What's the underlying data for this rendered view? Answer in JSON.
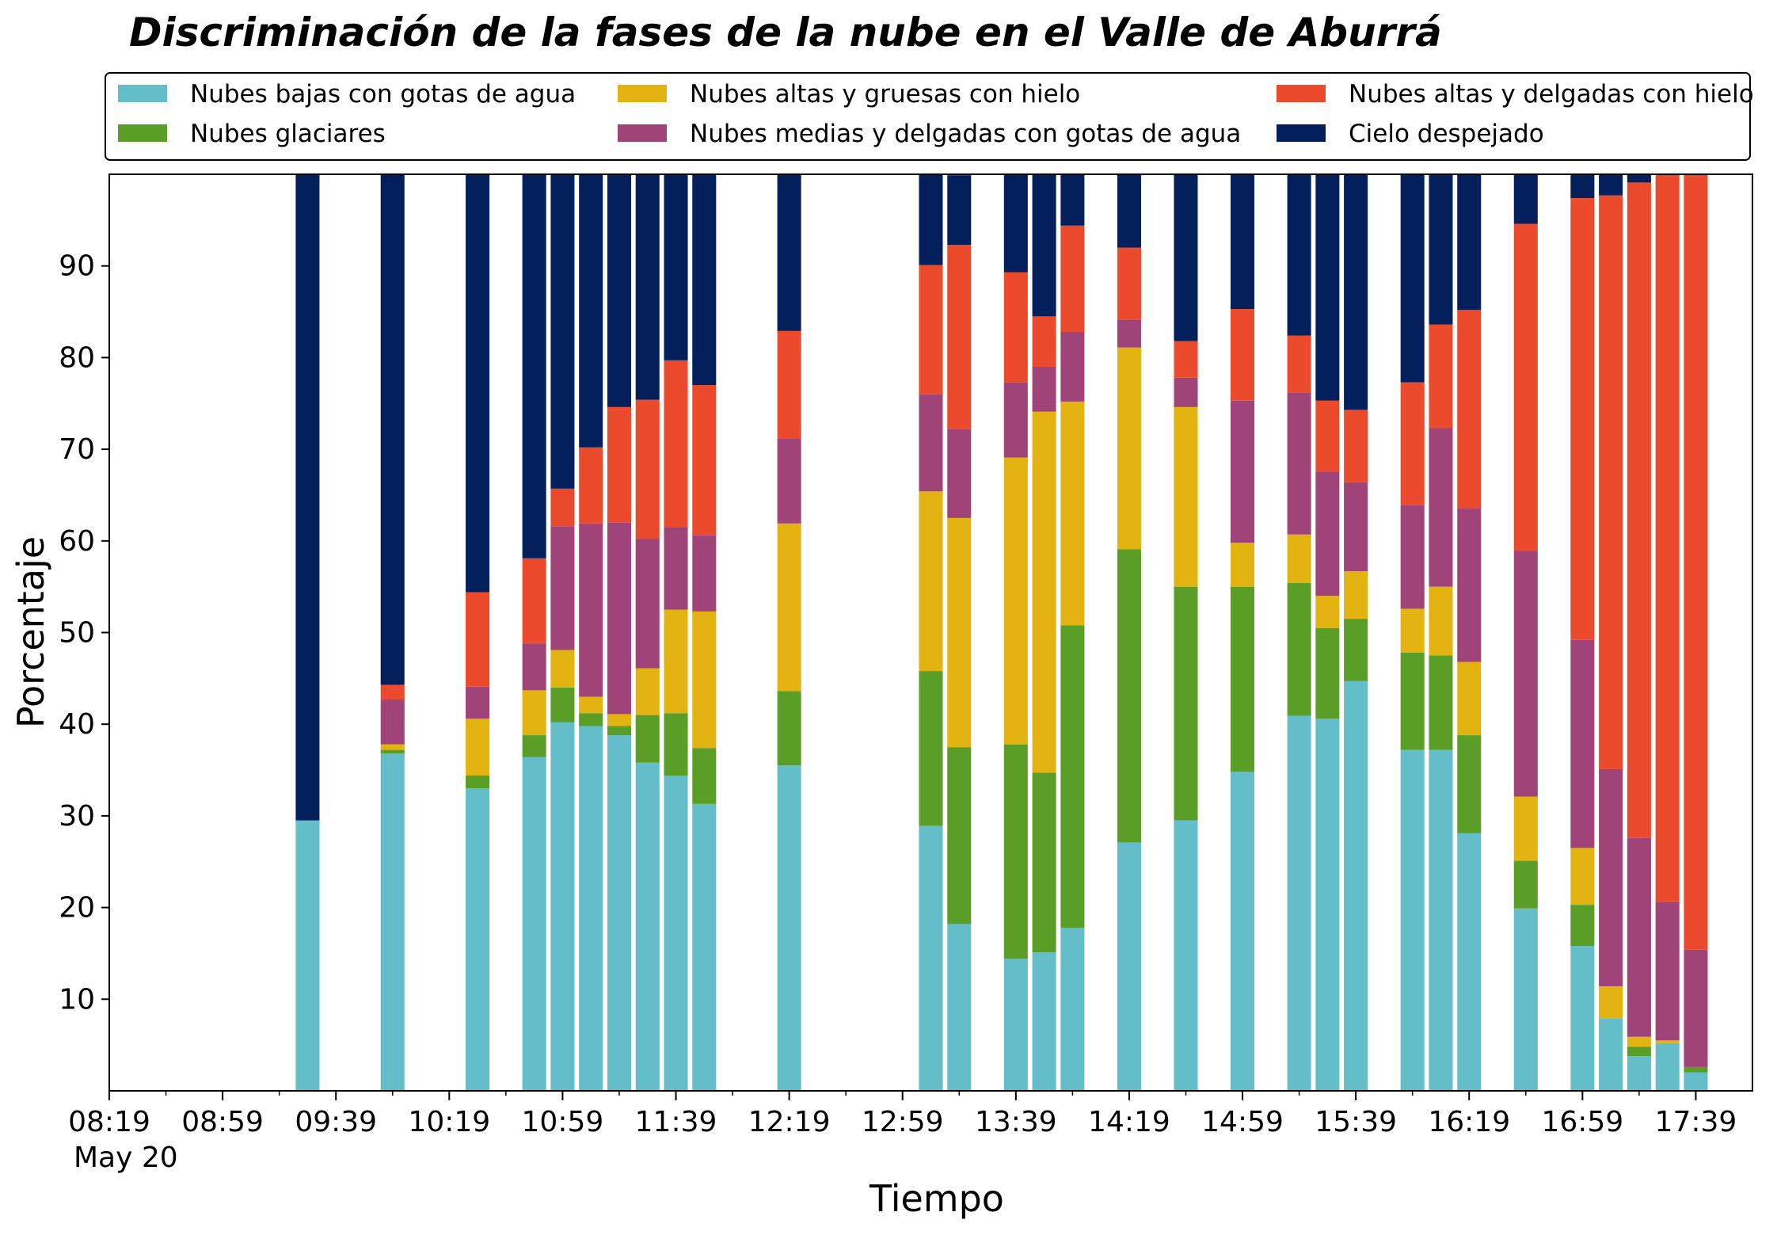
{
  "chart_data": {
    "type": "bar",
    "stacked": true,
    "title": "Discriminación de la fases de la nube en el Valle de Aburrá",
    "xlabel": "Tiempo",
    "ylabel": "Porcentaje",
    "ylim": [
      0,
      100
    ],
    "yticks": [
      10,
      20,
      30,
      40,
      50,
      60,
      70,
      80,
      90
    ],
    "x_range": [
      "08:19",
      "17:59"
    ],
    "xticks": [
      "08:19",
      "08:59",
      "09:39",
      "10:19",
      "10:59",
      "11:39",
      "12:19",
      "12:59",
      "13:39",
      "14:19",
      "14:59",
      "15:39",
      "16:19",
      "16:59",
      "17:39"
    ],
    "date_label": "May 20",
    "grid": false,
    "legend": {
      "position": "top",
      "columns": 3
    },
    "x": [
      "09:29",
      "09:59",
      "10:29",
      "10:49",
      "10:59",
      "11:09",
      "11:19",
      "11:29",
      "11:39",
      "11:49",
      "12:19",
      "13:09",
      "13:19",
      "13:39",
      "13:49",
      "13:59",
      "14:19",
      "14:39",
      "14:59",
      "15:19",
      "15:29",
      "15:39",
      "15:59",
      "16:09",
      "16:19",
      "16:39",
      "16:59",
      "17:09",
      "17:19",
      "17:29",
      "17:39"
    ],
    "series": [
      {
        "name": "Nubes bajas con gotas de agua",
        "color": "#64bec9",
        "values": [
          29.5,
          36.8,
          33.0,
          36.4,
          40.2,
          39.8,
          38.8,
          35.8,
          34.4,
          31.3,
          35.5,
          28.9,
          18.2,
          14.4,
          15.1,
          17.8,
          27.1,
          29.5,
          34.8,
          40.9,
          40.6,
          44.7,
          37.2,
          37.2,
          28.1,
          19.9,
          15.8,
          7.9,
          3.8,
          5.2,
          2.0
        ]
      },
      {
        "name": "Nubes glaciares",
        "color": "#5a9e28",
        "values": [
          0,
          0.4,
          1.4,
          2.4,
          3.8,
          1.4,
          1.0,
          5.2,
          6.8,
          6.1,
          8.1,
          16.9,
          19.3,
          23.4,
          19.6,
          33.0,
          32.0,
          25.5,
          20.2,
          14.5,
          9.9,
          6.8,
          10.6,
          10.3,
          10.7,
          5.2,
          4.5,
          0,
          1.0,
          0,
          0.6
        ]
      },
      {
        "name": "Nubes altas y gruesas con hielo",
        "color": "#e2b311",
        "values": [
          0,
          0.6,
          6.2,
          4.9,
          4.1,
          1.8,
          1.3,
          5.1,
          11.3,
          14.9,
          18.3,
          19.6,
          25.0,
          31.3,
          39.4,
          24.4,
          22.0,
          19.6,
          4.8,
          5.3,
          3.5,
          5.2,
          4.8,
          7.5,
          8.0,
          7.0,
          6.2,
          3.5,
          1.1,
          0.3,
          0
        ]
      },
      {
        "name": "Nubes medias y delgadas con gotas de agua",
        "color": "#a04378",
        "values": [
          0,
          4.9,
          3.5,
          5.1,
          13.5,
          18.9,
          20.9,
          14.1,
          9.0,
          8.3,
          9.3,
          10.6,
          9.7,
          8.2,
          4.9,
          7.6,
          3.0,
          3.2,
          15.5,
          15.5,
          13.5,
          9.7,
          11.3,
          17.3,
          16.8,
          26.8,
          22.7,
          23.7,
          21.7,
          15.1,
          12.8
        ]
      },
      {
        "name": "Nubes altas y delgadas con hielo",
        "color": "#ec4a2c",
        "values": [
          0,
          1.6,
          10.3,
          9.3,
          4.1,
          8.3,
          12.6,
          15.2,
          18.2,
          16.4,
          11.7,
          14.1,
          20.1,
          12.0,
          5.5,
          11.6,
          7.9,
          4.0,
          10.0,
          6.2,
          7.8,
          7.9,
          13.4,
          11.3,
          21.6,
          35.7,
          48.2,
          62.6,
          71.5,
          79.4,
          84.6
        ]
      },
      {
        "name": "Cielo despejado",
        "color": "#03205c",
        "values": [
          70.5,
          55.7,
          45.6,
          41.9,
          34.3,
          29.8,
          25.4,
          24.6,
          20.3,
          23.0,
          17.1,
          9.9,
          7.6,
          10.7,
          15.5,
          5.6,
          8.0,
          18.2,
          14.7,
          17.6,
          24.7,
          25.7,
          22.7,
          16.4,
          14.8,
          5.4,
          2.6,
          2.3,
          0.9,
          0,
          0
        ]
      }
    ]
  }
}
